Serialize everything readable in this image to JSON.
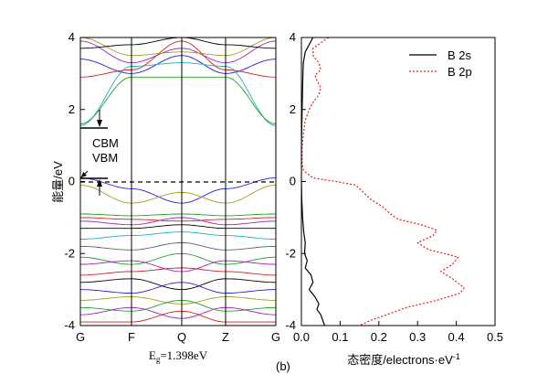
{
  "chart_data": [
    {
      "type": "line",
      "panel_label": "",
      "ylabel": "能量/eV",
      "ylim": [
        -4,
        4
      ],
      "y_ticks": [
        "4",
        "2",
        "0",
        "-2",
        "-4"
      ],
      "k_points": [
        "G",
        "F",
        "Q",
        "Z",
        "G"
      ],
      "xlabel_main": "E",
      "xlabel_sub": "g",
      "xlabel_value": "=1.398eV",
      "annotations": {
        "cbm": "CBM",
        "vbm": "VBM"
      },
      "cbm_energy": 1.5,
      "vbm_energy": 0.1,
      "fermi_level": 0,
      "band_colors": [
        "#000000",
        "#1f1fdf",
        "#d02020",
        "#20a020",
        "#a020c0",
        "#20b0c0",
        "#a0a020",
        "#606060"
      ],
      "conduction_bands": [
        {
          "color": "#1f1fdf",
          "values": [
            3.4,
            3.0,
            3.5,
            3.0,
            3.4
          ]
        },
        {
          "color": "#20b0c0",
          "values": [
            1.55,
            3.2,
            3.3,
            3.2,
            1.55
          ]
        },
        {
          "color": "#20a020",
          "values": [
            1.6,
            2.9,
            2.9,
            2.9,
            1.6
          ]
        },
        {
          "color": "#d02020",
          "values": [
            2.9,
            3.1,
            3.9,
            3.1,
            2.9
          ]
        },
        {
          "color": "#a020c0",
          "values": [
            3.9,
            3.3,
            3.7,
            3.3,
            3.9
          ]
        },
        {
          "color": "#a0a020",
          "values": [
            4.0,
            3.5,
            3.6,
            3.5,
            4.0
          ]
        },
        {
          "color": "#000000",
          "values": [
            3.7,
            3.8,
            4.0,
            3.8,
            3.7
          ]
        }
      ],
      "valence_bands": [
        {
          "color": "#1f1fdf",
          "values": [
            0.1,
            -0.2,
            -0.6,
            -0.2,
            0.1
          ]
        },
        {
          "color": "#a0a020",
          "values": [
            -0.1,
            -0.6,
            -0.3,
            -0.6,
            -0.1
          ]
        },
        {
          "color": "#20a020",
          "values": [
            -0.9,
            -0.95,
            -0.9,
            -0.95,
            -0.9
          ]
        },
        {
          "color": "#d02020",
          "values": [
            -1.0,
            -1.05,
            -1.1,
            -1.05,
            -1.0
          ]
        },
        {
          "color": "#a020c0",
          "values": [
            -1.1,
            -1.2,
            -1.0,
            -1.2,
            -1.1
          ]
        },
        {
          "color": "#000000",
          "values": [
            -1.3,
            -1.3,
            -1.2,
            -1.3,
            -1.3
          ]
        },
        {
          "color": "#20b0c0",
          "values": [
            -1.6,
            -1.5,
            -1.4,
            -1.5,
            -1.6
          ]
        },
        {
          "color": "#606060",
          "values": [
            -1.8,
            -1.9,
            -1.7,
            -1.9,
            -1.8
          ]
        },
        {
          "color": "#20a020",
          "values": [
            -2.1,
            -2.3,
            -2.0,
            -2.3,
            -2.1
          ]
        },
        {
          "color": "#a020c0",
          "values": [
            -2.3,
            -2.2,
            -2.5,
            -2.2,
            -2.3
          ]
        },
        {
          "color": "#d02020",
          "values": [
            -2.6,
            -2.5,
            -2.4,
            -2.5,
            -2.6
          ]
        },
        {
          "color": "#000000",
          "values": [
            -2.8,
            -2.7,
            -3.0,
            -2.7,
            -2.8
          ]
        },
        {
          "color": "#1f1fdf",
          "values": [
            -3.0,
            -3.1,
            -2.8,
            -3.1,
            -3.0
          ]
        },
        {
          "color": "#a0a020",
          "values": [
            -3.3,
            -3.2,
            -3.4,
            -3.2,
            -3.3
          ]
        },
        {
          "color": "#20a020",
          "values": [
            -3.5,
            -3.6,
            -3.3,
            -3.6,
            -3.5
          ]
        },
        {
          "color": "#a020c0",
          "values": [
            -3.7,
            -3.5,
            -3.8,
            -3.5,
            -3.7
          ]
        },
        {
          "color": "#d02020",
          "values": [
            -3.9,
            -3.9,
            -3.6,
            -3.9,
            -3.9
          ]
        }
      ]
    },
    {
      "type": "line",
      "panel_label": "(b)",
      "xlabel_main": "态密度/electrons·eV",
      "xlabel_sup": "-1",
      "xlim": [
        0,
        0.5
      ],
      "x_ticks": [
        "0.0",
        "0.1",
        "0.2",
        "0.3",
        "0.4",
        "0.5"
      ],
      "ylim": [
        -4,
        4
      ],
      "y_ticks": [
        "4",
        "2",
        "0",
        "-2",
        "-4"
      ],
      "legend_position": "top-right",
      "series": [
        {
          "name": "B 2s",
          "color": "#000000",
          "dash": "solid",
          "points": [
            [
              0.03,
              4.0
            ],
            [
              0.02,
              3.8
            ],
            [
              0.01,
              3.6
            ],
            [
              0.005,
              3.3
            ],
            [
              0.004,
              3.0
            ],
            [
              0.003,
              2.6
            ],
            [
              0.002,
              2.0
            ],
            [
              0.001,
              1.5
            ],
            [
              0.0,
              1.0
            ],
            [
              0.0,
              0.0
            ],
            [
              0.001,
              -0.5
            ],
            [
              0.003,
              -1.0
            ],
            [
              0.006,
              -1.4
            ],
            [
              0.01,
              -1.7
            ],
            [
              0.008,
              -2.0
            ],
            [
              0.015,
              -2.2
            ],
            [
              0.01,
              -2.4
            ],
            [
              0.025,
              -2.6
            ],
            [
              0.03,
              -2.8
            ],
            [
              0.02,
              -3.0
            ],
            [
              0.035,
              -3.2
            ],
            [
              0.045,
              -3.4
            ],
            [
              0.04,
              -3.55
            ],
            [
              0.05,
              -3.7
            ],
            [
              0.055,
              -3.85
            ],
            [
              0.06,
              -4.0
            ]
          ]
        },
        {
          "name": "B 2p",
          "color": "#e02020",
          "dash": "dotted",
          "points": [
            [
              0.07,
              4.0
            ],
            [
              0.05,
              3.85
            ],
            [
              0.03,
              3.7
            ],
            [
              0.03,
              3.5
            ],
            [
              0.045,
              3.3
            ],
            [
              0.05,
              3.1
            ],
            [
              0.035,
              2.95
            ],
            [
              0.04,
              2.8
            ],
            [
              0.05,
              2.6
            ],
            [
              0.045,
              2.4
            ],
            [
              0.03,
              2.2
            ],
            [
              0.02,
              2.0
            ],
            [
              0.01,
              1.7
            ],
            [
              0.005,
              1.3
            ],
            [
              0.002,
              1.0
            ],
            [
              0.002,
              0.5
            ],
            [
              0.006,
              0.3
            ],
            [
              0.03,
              0.1
            ],
            [
              0.09,
              0.0
            ],
            [
              0.14,
              -0.1
            ],
            [
              0.16,
              -0.3
            ],
            [
              0.18,
              -0.5
            ],
            [
              0.21,
              -0.7
            ],
            [
              0.23,
              -0.9
            ],
            [
              0.25,
              -1.05
            ],
            [
              0.31,
              -1.2
            ],
            [
              0.35,
              -1.35
            ],
            [
              0.34,
              -1.5
            ],
            [
              0.3,
              -1.7
            ],
            [
              0.33,
              -1.9
            ],
            [
              0.37,
              -2.0
            ],
            [
              0.405,
              -2.1
            ],
            [
              0.39,
              -2.3
            ],
            [
              0.36,
              -2.5
            ],
            [
              0.39,
              -2.7
            ],
            [
              0.42,
              -2.95
            ],
            [
              0.41,
              -3.1
            ],
            [
              0.35,
              -3.3
            ],
            [
              0.27,
              -3.5
            ],
            [
              0.22,
              -3.7
            ],
            [
              0.18,
              -3.85
            ],
            [
              0.15,
              -4.0
            ]
          ]
        }
      ]
    }
  ]
}
